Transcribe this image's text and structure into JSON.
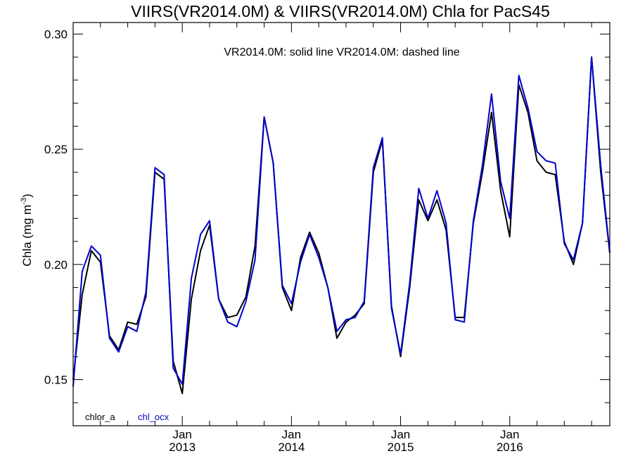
{
  "chart_data": {
    "type": "line",
    "title": "VIIRS(VR2014.0M) & VIIRS(VR2014.0M)  Chla for PacS45",
    "subtitle": "VR2014.0M: solid line   VR2014.0M: dashed line",
    "ylabel": "Chla (mg m",
    "ylabel_superscript": "-3",
    "ylabel_close": ")",
    "xlabel": "",
    "ylim": [
      0.13,
      0.305
    ],
    "xlim": [
      "2012-01",
      "2016-12"
    ],
    "y_ticks": [
      0.15,
      0.2,
      0.25,
      0.3
    ],
    "y_tick_labels": [
      "0.15",
      "0.20",
      "0.25",
      "0.30"
    ],
    "y_minor_step": 0.01,
    "x_ticks": [
      {
        "date": "2013-01",
        "month": "Jan",
        "year": "2013"
      },
      {
        "date": "2014-01",
        "month": "Jan",
        "year": "2014"
      },
      {
        "date": "2015-01",
        "month": "Jan",
        "year": "2015"
      },
      {
        "date": "2016-01",
        "month": "Jan",
        "year": "2016"
      }
    ],
    "x": [
      "2012-01",
      "2012-02",
      "2012-03",
      "2012-04",
      "2012-05",
      "2012-06",
      "2012-07",
      "2012-08",
      "2012-09",
      "2012-10",
      "2012-11",
      "2012-12",
      "2013-01",
      "2013-02",
      "2013-03",
      "2013-04",
      "2013-05",
      "2013-06",
      "2013-07",
      "2013-08",
      "2013-09",
      "2013-10",
      "2013-11",
      "2013-12",
      "2014-01",
      "2014-02",
      "2014-03",
      "2014-04",
      "2014-05",
      "2014-06",
      "2014-07",
      "2014-08",
      "2014-09",
      "2014-10",
      "2014-11",
      "2014-12",
      "2015-01",
      "2015-02",
      "2015-03",
      "2015-04",
      "2015-05",
      "2015-06",
      "2015-07",
      "2015-08",
      "2015-09",
      "2015-10",
      "2015-11",
      "2015-12",
      "2016-01",
      "2016-02",
      "2016-03",
      "2016-04",
      "2016-05",
      "2016-06",
      "2016-07",
      "2016-08",
      "2016-09",
      "2016-10",
      "2016-11",
      "2016-12"
    ],
    "series": [
      {
        "name": "chlor_a",
        "color": "#000000",
        "values": [
          0.15,
          0.187,
          0.206,
          0.201,
          0.169,
          0.163,
          0.175,
          0.174,
          0.186,
          0.24,
          0.237,
          0.158,
          0.144,
          0.185,
          0.206,
          0.217,
          0.185,
          0.177,
          0.178,
          0.186,
          0.208,
          0.264,
          0.244,
          0.19,
          0.18,
          0.203,
          0.214,
          0.205,
          0.19,
          0.168,
          0.175,
          0.178,
          0.183,
          0.24,
          0.254,
          0.182,
          0.16,
          0.19,
          0.228,
          0.219,
          0.228,
          0.215,
          0.177,
          0.177,
          0.218,
          0.24,
          0.266,
          0.232,
          0.212,
          0.278,
          0.266,
          0.245,
          0.24,
          0.239,
          0.21,
          0.2,
          0.218,
          0.29,
          0.24,
          0.205
        ]
      },
      {
        "name": "chl_ocx",
        "color": "#0000cc",
        "values": [
          0.147,
          0.197,
          0.208,
          0.204,
          0.168,
          0.162,
          0.173,
          0.171,
          0.188,
          0.242,
          0.239,
          0.155,
          0.148,
          0.194,
          0.213,
          0.219,
          0.185,
          0.175,
          0.173,
          0.184,
          0.202,
          0.264,
          0.244,
          0.191,
          0.183,
          0.201,
          0.213,
          0.203,
          0.19,
          0.171,
          0.176,
          0.177,
          0.184,
          0.242,
          0.255,
          0.181,
          0.161,
          0.192,
          0.233,
          0.22,
          0.232,
          0.218,
          0.176,
          0.175,
          0.219,
          0.243,
          0.274,
          0.236,
          0.22,
          0.282,
          0.268,
          0.249,
          0.245,
          0.244,
          0.209,
          0.202,
          0.218,
          0.29,
          0.243,
          0.205
        ]
      }
    ],
    "legend": {
      "placement": "bottom-left",
      "items": [
        "chlor_a",
        "chl_ocx"
      ]
    }
  }
}
